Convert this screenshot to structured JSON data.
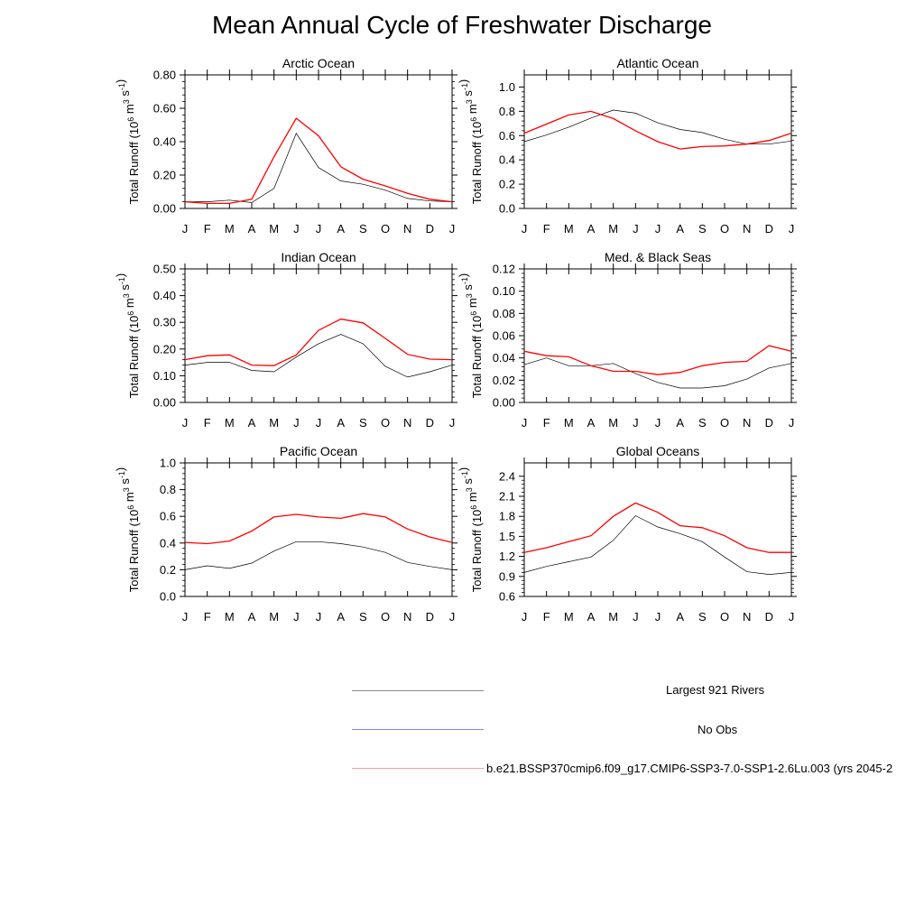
{
  "title": "Mean Annual Cycle of Freshwater Discharge",
  "months": [
    "J",
    "F",
    "M",
    "A",
    "M",
    "J",
    "J",
    "A",
    "S",
    "O",
    "N",
    "D",
    "J"
  ],
  "ylabel_text": "Total Runoff (10",
  "ylabel_sup1": "6",
  "ylabel_mid": " m",
  "ylabel_sup2": "3",
  "ylabel_s": " s",
  "ylabel_sup3": "-1",
  "ylabel_close": ")",
  "colors": {
    "obs": "#000000",
    "noobs": "#0000ff",
    "model": "#ff0000"
  },
  "chart_data": [
    {
      "type": "line",
      "title": "Arctic Ocean",
      "ylim": [
        0,
        0.8
      ],
      "yticks": [
        "0.00",
        "0.20",
        "0.40",
        "0.60",
        "0.80"
      ],
      "ytick_values": [
        0,
        0.2,
        0.4,
        0.6,
        0.8
      ],
      "series": [
        {
          "name": "Largest 921 Rivers",
          "values": [
            0.04,
            0.04,
            0.05,
            0.035,
            0.12,
            0.45,
            0.245,
            0.165,
            0.145,
            0.11,
            0.06,
            0.045,
            0.04
          ]
        },
        {
          "name": "b.e21.BSSP370cmip6.f09_g17.CMIP6-SSP3-7.0-SSP1-2.6Lu.003 (yrs 2045-2",
          "values": [
            0.04,
            0.03,
            0.03,
            0.055,
            0.31,
            0.54,
            0.435,
            0.25,
            0.175,
            0.135,
            0.09,
            0.055,
            0.04
          ]
        }
      ]
    },
    {
      "type": "line",
      "title": "Atlantic Ocean",
      "ylim": [
        0,
        1.1
      ],
      "yticks": [
        "0.0",
        "0.2",
        "0.4",
        "0.6",
        "0.8",
        "1.0"
      ],
      "ytick_values": [
        0,
        0.2,
        0.4,
        0.6,
        0.8,
        1.0
      ],
      "series": [
        {
          "name": "Largest 921 Rivers",
          "values": [
            0.55,
            0.605,
            0.67,
            0.745,
            0.81,
            0.785,
            0.705,
            0.65,
            0.625,
            0.57,
            0.53,
            0.53,
            0.555
          ]
        },
        {
          "name": "b.e21.BSSP370cmip6.f09_g17.CMIP6-SSP3-7.0-SSP1-2.6Lu.003 (yrs 2045-2",
          "values": [
            0.62,
            0.695,
            0.77,
            0.8,
            0.74,
            0.64,
            0.55,
            0.49,
            0.51,
            0.515,
            0.53,
            0.56,
            0.62
          ]
        }
      ]
    },
    {
      "type": "line",
      "title": "Indian Ocean",
      "ylim": [
        0,
        0.5
      ],
      "yticks": [
        "0.00",
        "0.10",
        "0.20",
        "0.30",
        "0.40",
        "0.50"
      ],
      "ytick_values": [
        0,
        0.1,
        0.2,
        0.3,
        0.4,
        0.5
      ],
      "series": [
        {
          "name": "Largest 921 Rivers",
          "values": [
            0.14,
            0.15,
            0.15,
            0.12,
            0.115,
            0.17,
            0.22,
            0.255,
            0.22,
            0.135,
            0.095,
            0.115,
            0.14
          ]
        },
        {
          "name": "b.e21.BSSP370cmip6.f09_g17.CMIP6-SSP3-7.0-SSP1-2.6Lu.003 (yrs 2045-2",
          "values": [
            0.16,
            0.175,
            0.178,
            0.14,
            0.138,
            0.178,
            0.27,
            0.312,
            0.298,
            0.24,
            0.18,
            0.162,
            0.16
          ]
        }
      ]
    },
    {
      "type": "line",
      "title": "Med. & Black Seas",
      "ylim": [
        0,
        0.12
      ],
      "yticks": [
        "0.00",
        "0.02",
        "0.04",
        "0.06",
        "0.08",
        "0.10",
        "0.12"
      ],
      "ytick_values": [
        0,
        0.02,
        0.04,
        0.06,
        0.08,
        0.1,
        0.12
      ],
      "series": [
        {
          "name": "Largest 921 Rivers",
          "values": [
            0.034,
            0.04,
            0.033,
            0.033,
            0.035,
            0.026,
            0.018,
            0.013,
            0.013,
            0.015,
            0.021,
            0.031,
            0.035
          ]
        },
        {
          "name": "b.e21.BSSP370cmip6.f09_g17.CMIP6-SSP3-7.0-SSP1-2.6Lu.003 (yrs 2045-2",
          "values": [
            0.046,
            0.042,
            0.041,
            0.033,
            0.028,
            0.028,
            0.025,
            0.027,
            0.033,
            0.036,
            0.037,
            0.051,
            0.046
          ]
        }
      ]
    },
    {
      "type": "line",
      "title": "Pacific Ocean",
      "ylim": [
        0,
        1.0
      ],
      "yticks": [
        "0.0",
        "0.2",
        "0.4",
        "0.6",
        "0.8",
        "1.0"
      ],
      "ytick_values": [
        0,
        0.2,
        0.4,
        0.6,
        0.8,
        1.0
      ],
      "series": [
        {
          "name": "Largest 921 Rivers",
          "values": [
            0.2,
            0.23,
            0.21,
            0.25,
            0.34,
            0.41,
            0.41,
            0.395,
            0.37,
            0.33,
            0.255,
            0.225,
            0.2
          ]
        },
        {
          "name": "b.e21.BSSP370cmip6.f09_g17.CMIP6-SSP3-7.0-SSP1-2.6Lu.003 (yrs 2045-2",
          "values": [
            0.405,
            0.395,
            0.415,
            0.49,
            0.595,
            0.615,
            0.595,
            0.585,
            0.62,
            0.595,
            0.505,
            0.445,
            0.405
          ]
        }
      ]
    },
    {
      "type": "line",
      "title": "Global Oceans",
      "ylim": [
        0.6,
        2.6
      ],
      "yticks": [
        "0.6",
        "0.9",
        "1.2",
        "1.5",
        "1.8",
        "2.1",
        "2.4"
      ],
      "ytick_values": [
        0.6,
        0.9,
        1.2,
        1.5,
        1.8,
        2.1,
        2.4
      ],
      "series": [
        {
          "name": "Largest 921 Rivers",
          "values": [
            0.96,
            1.05,
            1.12,
            1.19,
            1.44,
            1.81,
            1.64,
            1.54,
            1.42,
            1.19,
            0.97,
            0.93,
            0.96
          ]
        },
        {
          "name": "b.e21.BSSP370cmip6.f09_g17.CMIP6-SSP3-7.0-SSP1-2.6Lu.003 (yrs 2045-2",
          "values": [
            1.26,
            1.33,
            1.42,
            1.51,
            1.8,
            2.0,
            1.86,
            1.66,
            1.63,
            1.51,
            1.33,
            1.26,
            1.26
          ]
        }
      ]
    }
  ],
  "legend": [
    {
      "label": "Largest 921 Rivers",
      "color": "#000000"
    },
    {
      "label": "No Obs",
      "color": "#0000ff"
    },
    {
      "label": "b.e21.BSSP370cmip6.f09_g17.CMIP6-SSP3-7.0-SSP1-2.6Lu.003 (yrs 2045-2",
      "color": "#ff0000"
    }
  ]
}
